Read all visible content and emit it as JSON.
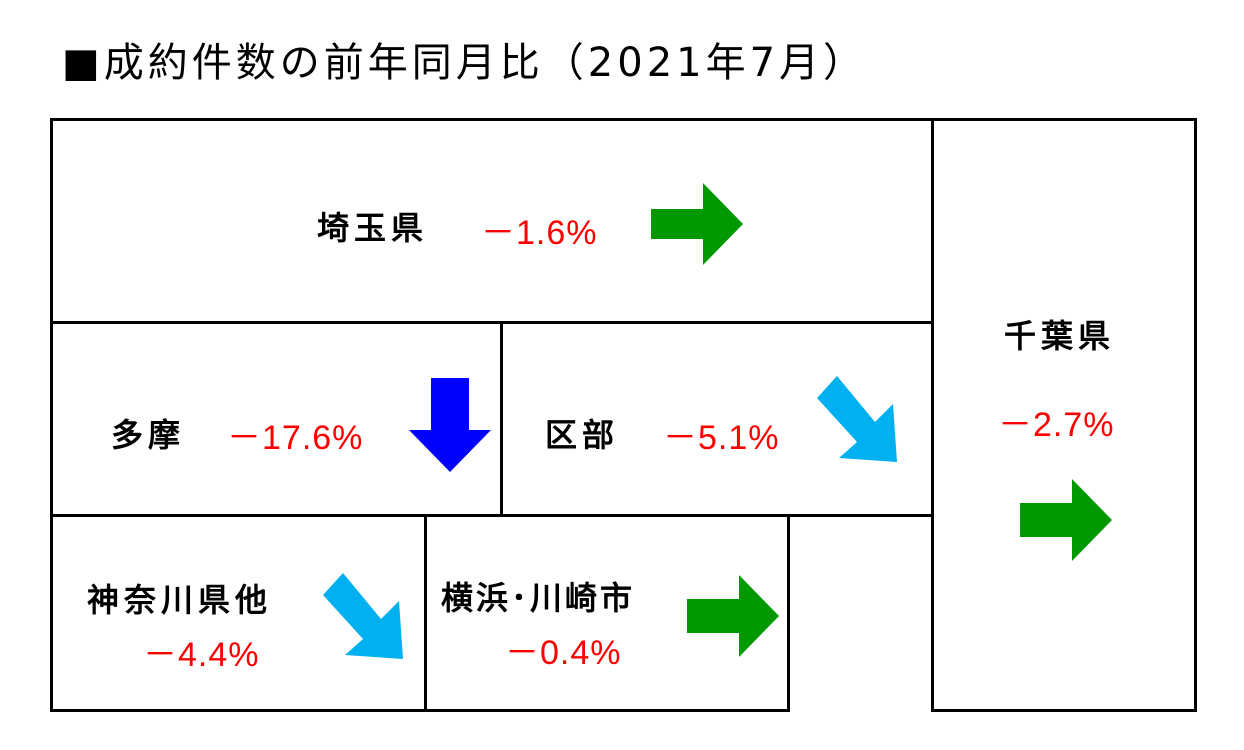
{
  "title": "■成約件数の前年同月比（2021年7月）",
  "colors": {
    "up": "#009900",
    "down": "#0000ff",
    "slight_down": "#00b0f0",
    "negative_text": "#ff0000"
  },
  "regions": [
    {
      "id": "saitama",
      "name": "埼玉県",
      "value": "－1.6%",
      "trend": "flat",
      "arrow_icon": "right-arrow-icon"
    },
    {
      "id": "chiba",
      "name": "千葉県",
      "value": "－2.7%",
      "trend": "flat",
      "arrow_icon": "right-arrow-icon"
    },
    {
      "id": "tama",
      "name": "多摩",
      "value": "－17.6%",
      "trend": "down",
      "arrow_icon": "down-arrow-icon"
    },
    {
      "id": "kubu",
      "name": "区部",
      "value": "－5.1%",
      "trend": "slight-down",
      "arrow_icon": "down-right-arrow-icon"
    },
    {
      "id": "kanagawa",
      "name": "神奈川県他",
      "value": "－4.4%",
      "trend": "slight-down",
      "arrow_icon": "down-right-arrow-icon"
    },
    {
      "id": "yokohama",
      "name": "横浜･川崎市",
      "value": "－0.4%",
      "trend": "flat",
      "arrow_icon": "right-arrow-icon"
    }
  ]
}
